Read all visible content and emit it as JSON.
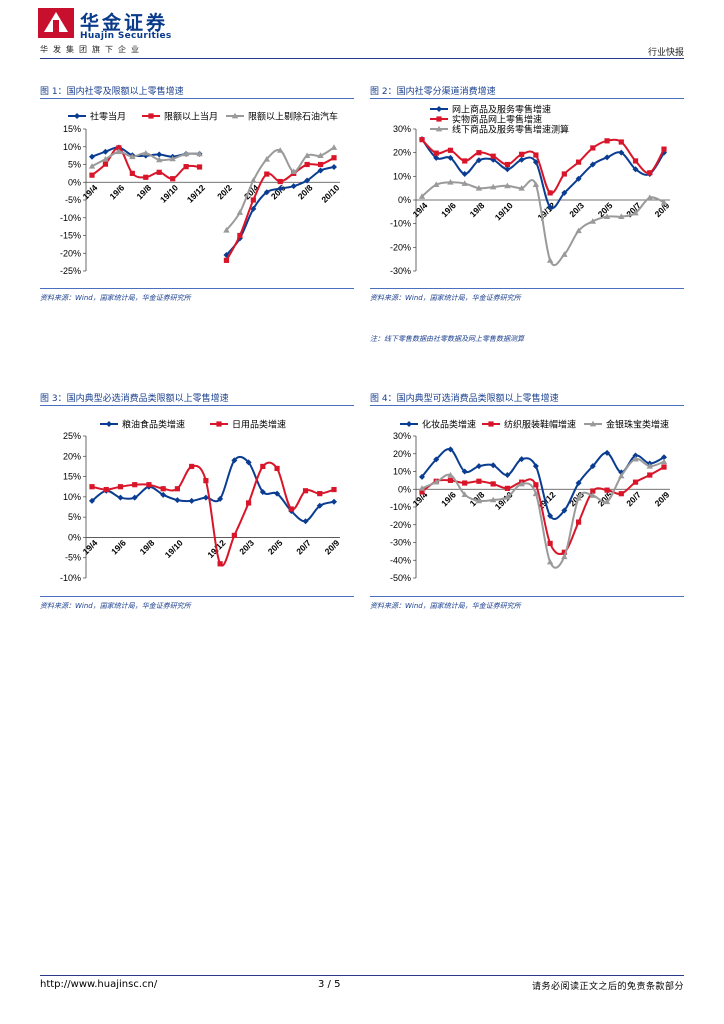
{
  "header": {
    "company_cn": "华金证券",
    "company_en": "Huajin Securities",
    "group_tag": "华发集团旗下企业",
    "report_type": "行业快报"
  },
  "colors": {
    "blue": "#0a3d91",
    "red": "#d9152a",
    "gray": "#9a9a9a",
    "brand": "#0a3a8a"
  },
  "figures": [
    {
      "title": "图 1：国内社零及限额以上零售增速",
      "source": "资料来源：Wind，国家统计局，华金证券研究所"
    },
    {
      "title": "图 2：国内社零分渠道消费增速",
      "source": "资料来源：Wind，国家统计局，华金证券研究所",
      "note": "注：线下零售数据由社零数据及网上零售数据测算"
    },
    {
      "title": "图 3：国内典型必选消费品类限额以上零售增速",
      "source": "资料来源：Wind，国家统计局，华金证券研究所"
    },
    {
      "title": "图 4：国内典型可选消费品类限额以上零售增速",
      "source": "资料来源：Wind，国家统计局，华金证券研究所"
    }
  ],
  "footer": {
    "url": "http://www.huajinsc.cn/",
    "page": "3 / 5",
    "disclaimer": "请务必阅读正文之后的免责条款部分"
  },
  "chart_data": [
    {
      "type": "line",
      "ylim": [
        -25,
        15
      ],
      "ystep": 5,
      "yfmt": "%",
      "x_labels": [
        "19/4",
        "19/6",
        "19/8",
        "19/10",
        "19/12",
        "20/2",
        "20/4",
        "20/6",
        "20/8",
        "20/10"
      ],
      "series": [
        {
          "name": "社零当月",
          "color": "blue",
          "marker": "diamond",
          "values": [
            7.2,
            8.6,
            9.8,
            7.6,
            7.5,
            7.8,
            7.2,
            8.0,
            8.0,
            null,
            -20.5,
            -15.8,
            -7.5,
            -2.8,
            -1.8,
            -1.1,
            0.5,
            3.3,
            4.3
          ]
        },
        {
          "name": "限额以上当月",
          "color": "red",
          "marker": "square",
          "values": [
            2.0,
            5.1,
            9.7,
            2.5,
            1.4,
            2.8,
            1.0,
            4.4,
            4.3,
            null,
            -22.0,
            -15.0,
            -5.0,
            2.3,
            0.2,
            2.5,
            5.0,
            5.0,
            6.9
          ]
        },
        {
          "name": "限额以上剔除石油汽车",
          "color": "gray",
          "marker": "triangle",
          "values": [
            4.5,
            6.5,
            8.6,
            7.2,
            8.2,
            6.3,
            6.6,
            8.0,
            8.0,
            null,
            -13.5,
            -8.5,
            0.5,
            6.5,
            9.0,
            3.0,
            7.5,
            7.5,
            9.8
          ]
        }
      ]
    },
    {
      "type": "line",
      "ylim": [
        -30,
        30
      ],
      "ystep": 10,
      "yfmt": "%",
      "x_labels": [
        "19/4",
        "19/6",
        "19/8",
        "19/10",
        "19/12",
        "20/3",
        "20/5",
        "20/7",
        "20/9"
      ],
      "series": [
        {
          "name": "网上商品及服务零售增速",
          "color": "blue",
          "marker": "diamond",
          "values": [
            25.7,
            17.8,
            17.8,
            11.0,
            16.8,
            17.0,
            13.0,
            17.0,
            16.0,
            -3.0,
            3.0,
            9.0,
            15.0,
            18.0,
            20.0,
            13.0,
            11.0,
            20.0
          ]
        },
        {
          "name": "实物商品网上零售增速",
          "color": "red",
          "marker": "square",
          "values": [
            25.5,
            19.8,
            21.0,
            16.5,
            20.0,
            18.5,
            15.0,
            19.3,
            19.0,
            3.0,
            11.0,
            16.0,
            22.0,
            25.0,
            24.5,
            16.5,
            11.5,
            21.5
          ]
        },
        {
          "name": "线下商品及服务零售增速测算",
          "color": "gray",
          "marker": "triangle",
          "values": [
            1.5,
            6.5,
            7.5,
            7.0,
            5.0,
            5.5,
            6.0,
            5.0,
            6.5,
            -25.5,
            -23.0,
            -13.0,
            -9.0,
            -7.0,
            -7.0,
            -5.5,
            1.0,
            -1.0
          ]
        }
      ]
    },
    {
      "type": "line",
      "ylim": [
        -10,
        25
      ],
      "ystep": 5,
      "yfmt": "%",
      "x_labels": [
        "19/4",
        "19/6",
        "19/8",
        "19/10",
        "19/12",
        "20/3",
        "20/5",
        "20/7",
        "20/9"
      ],
      "series": [
        {
          "name": "粮油食品类增速",
          "color": "blue",
          "marker": "diamond",
          "values": [
            9.0,
            11.5,
            9.8,
            9.8,
            12.5,
            10.5,
            9.2,
            9.0,
            9.8,
            9.5,
            19.0,
            18.5,
            11.2,
            10.8,
            6.5,
            4.0,
            7.8,
            8.8
          ]
        },
        {
          "name": "日用品类增速",
          "color": "red",
          "marker": "square",
          "values": [
            12.5,
            11.8,
            12.5,
            13.0,
            13.0,
            12.0,
            12.0,
            17.5,
            14.0,
            -6.5,
            0.5,
            8.5,
            17.5,
            17.0,
            7.0,
            11.5,
            10.8,
            11.8
          ]
        }
      ]
    },
    {
      "type": "line",
      "ylim": [
        -50,
        30
      ],
      "ystep": 10,
      "yfmt": "%",
      "x_labels": [
        "19/4",
        "19/6",
        "19/8",
        "19/10",
        "19/12",
        "20/3",
        "20/5",
        "20/7",
        "20/9"
      ],
      "series": [
        {
          "name": "化妆品类增速",
          "color": "blue",
          "marker": "diamond",
          "values": [
            7.0,
            16.8,
            22.5,
            10.0,
            13.0,
            13.5,
            8.0,
            17.0,
            13.0,
            -15.0,
            -12.0,
            3.5,
            13.0,
            20.5,
            9.5,
            19.0,
            14.5,
            18.0
          ]
        },
        {
          "name": "纺织服装鞋帽增速",
          "color": "red",
          "marker": "square",
          "values": [
            -1.5,
            4.5,
            5.0,
            3.5,
            4.5,
            3.0,
            0.5,
            4.0,
            2.5,
            -30.5,
            -35.5,
            -18.5,
            -1.0,
            -0.5,
            -2.5,
            4.0,
            8.0,
            12.5
          ]
        },
        {
          "name": "金银珠宝类增速",
          "color": "gray",
          "marker": "triangle",
          "values": [
            0.5,
            4.0,
            8.0,
            -3.0,
            -6.5,
            -6.0,
            -4.5,
            3.0,
            -2.5,
            -41.0,
            -38.0,
            -5.0,
            -3.5,
            -7.0,
            7.5,
            17.0,
            13.0,
            15.5
          ]
        }
      ]
    }
  ]
}
